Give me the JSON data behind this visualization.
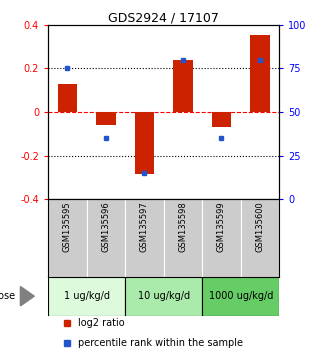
{
  "title": "GDS2924 / 17107",
  "samples": [
    "GSM135595",
    "GSM135596",
    "GSM135597",
    "GSM135598",
    "GSM135599",
    "GSM135600"
  ],
  "log2_ratio": [
    0.13,
    -0.06,
    -0.285,
    0.24,
    -0.07,
    0.355
  ],
  "percentile_rank_pct": [
    75,
    35,
    15,
    80,
    35,
    80
  ],
  "bar_color": "#cc2200",
  "dot_color": "#2255cc",
  "ylim": [
    -0.4,
    0.4
  ],
  "yticks_left": [
    -0.4,
    -0.2,
    0.0,
    0.2,
    0.4
  ],
  "yticks_right": [
    0,
    25,
    50,
    75,
    100
  ],
  "hlines_dotted": [
    0.2,
    -0.2
  ],
  "hline_dashed": 0.0,
  "dose_groups": [
    {
      "label": "1 ug/kg/d",
      "samples": [
        0,
        1
      ],
      "color": "#ddfadd"
    },
    {
      "label": "10 ug/kg/d",
      "samples": [
        2,
        3
      ],
      "color": "#aaeaaa"
    },
    {
      "label": "1000 ug/kg/d",
      "samples": [
        4,
        5
      ],
      "color": "#66cc66"
    }
  ],
  "dose_label": "dose",
  "legend_red": "log2 ratio",
  "legend_blue": "percentile rank within the sample",
  "bg_color": "#ffffff",
  "sample_box_color": "#cccccc",
  "title_fontsize": 9,
  "tick_fontsize": 7,
  "label_fontsize": 7,
  "sample_fontsize": 6,
  "dose_fontsize": 7,
  "legend_fontsize": 7
}
